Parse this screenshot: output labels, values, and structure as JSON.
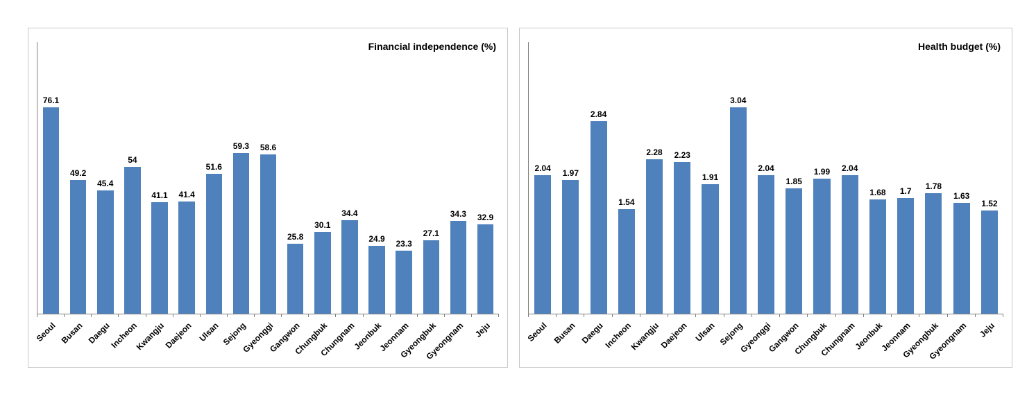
{
  "style": {
    "bar_color": "#4f81bd",
    "axis_color": "#7f7f7f",
    "panel_border_color": "#c6c6c6",
    "background_color": "#ffffff"
  },
  "chart_data": [
    {
      "type": "bar",
      "title": "Financial independence (%)",
      "categories": [
        "Seoul",
        "Busan",
        "Daegu",
        "Incheon",
        "Kwangju",
        "Daejeon",
        "Ulsan",
        "Sejong",
        "Gyeonggi",
        "Gangwon",
        "Chungbuk",
        "Chungnam",
        "Jeonbuk",
        "Jeonnam",
        "Gyeongbuk",
        "Gyeongnam",
        "Jeju"
      ],
      "values": [
        76.1,
        49.2,
        45.4,
        54,
        41.1,
        41.4,
        51.6,
        59.3,
        58.6,
        25.8,
        30.1,
        34.4,
        24.9,
        23.3,
        27.1,
        34.3,
        32.9
      ],
      "xlabel": "",
      "ylabel": "",
      "ylim": [
        0,
        100
      ],
      "grid": false,
      "legend": false,
      "value_labels_shown": true,
      "title_position": "top-right"
    },
    {
      "type": "bar",
      "title": "Health budget (%)",
      "categories": [
        "Seoul",
        "Busan",
        "Daegu",
        "Incheon",
        "Kwangju",
        "Daejeon",
        "Ulsan",
        "Sejong",
        "Gyeonggi",
        "Gangwon",
        "Chungbuk",
        "Chungnam",
        "Jeonbuk",
        "Jeonnam",
        "Gyeongbuk",
        "Gyeongnam",
        "Jeju"
      ],
      "values": [
        2.04,
        1.97,
        2.84,
        1.54,
        2.28,
        2.23,
        1.91,
        3.04,
        2.04,
        1.85,
        1.99,
        2.04,
        1.68,
        1.7,
        1.78,
        1.63,
        1.52
      ],
      "xlabel": "",
      "ylabel": "",
      "ylim": [
        0,
        4
      ],
      "grid": false,
      "legend": false,
      "value_labels_shown": true,
      "title_position": "top-right"
    }
  ]
}
